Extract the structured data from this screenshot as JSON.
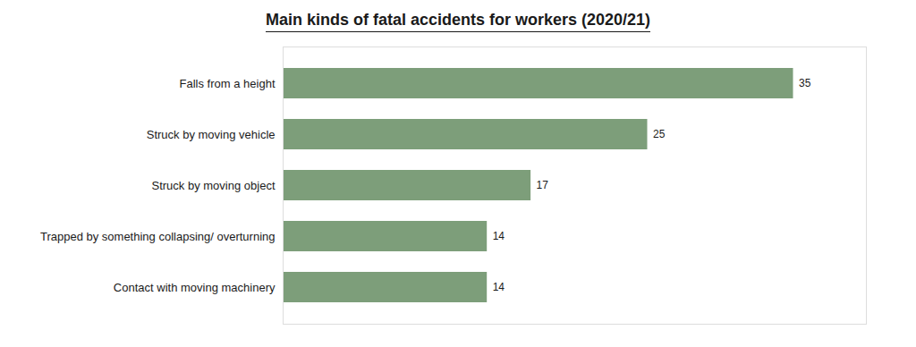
{
  "chart_data": {
    "type": "bar",
    "title": "Main kinds of fatal accidents for workers (2020/21)",
    "categories": [
      "Contact with moving machinery",
      "Trapped by something collapsing/ overturning",
      "Struck by moving object",
      "Struck by moving vehicle",
      "Falls from a height"
    ],
    "values": [
      14,
      14,
      17,
      25,
      35
    ],
    "color": "#7d9e7a",
    "orientation": "horizontal",
    "xlim": [
      0,
      40
    ],
    "data_labels": true,
    "tick_labels": "y",
    "grid": false
  }
}
